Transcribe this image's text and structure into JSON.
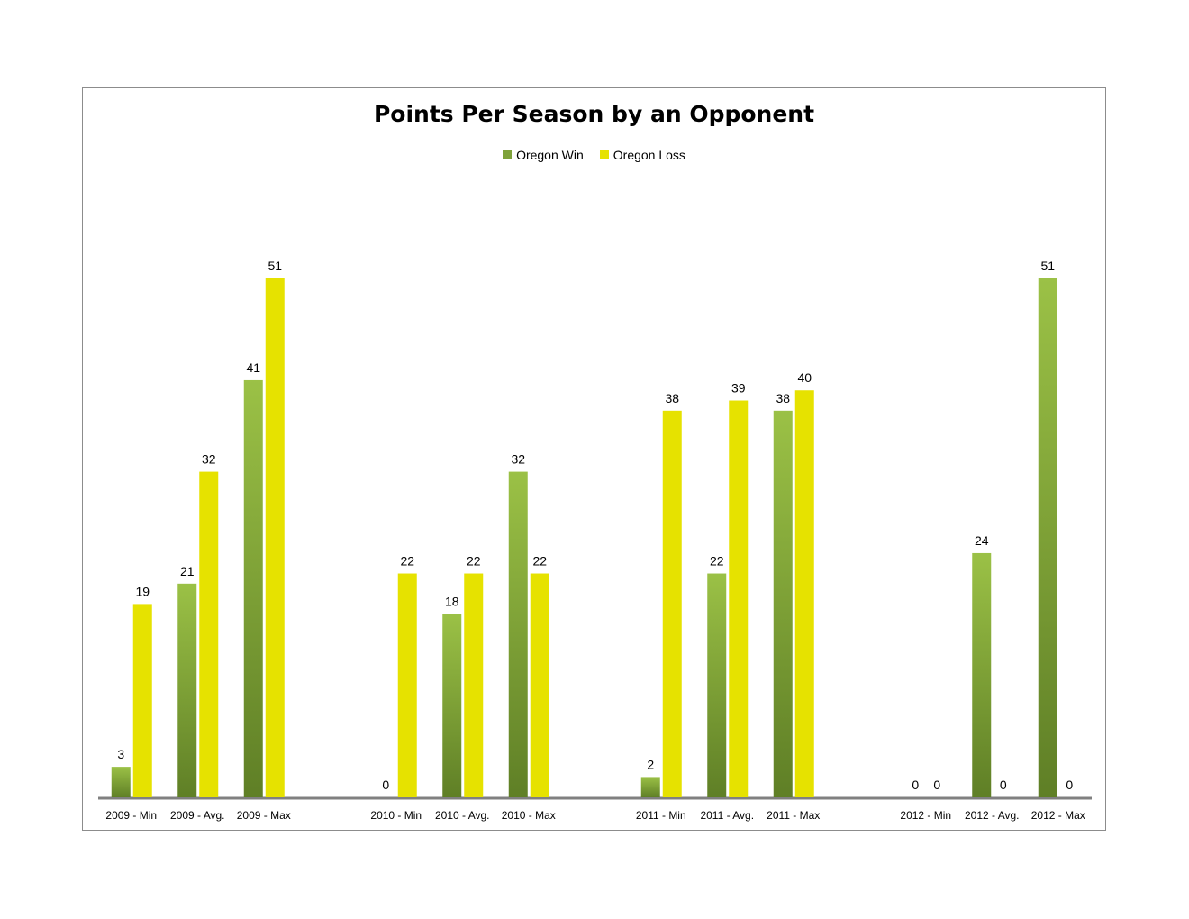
{
  "colors": {
    "win": "#7ea23a",
    "win_light": "#9bc146",
    "win_dark": "#5f7f26",
    "loss": "#e6e200",
    "axis": "#808080"
  },
  "chart_data": {
    "type": "bar",
    "title": "Points Per Season by an Opponent",
    "xlabel": "",
    "ylabel": "",
    "ylim": [
      0,
      51
    ],
    "legend_position": "top",
    "grid": false,
    "categories": [
      "2009 - Min",
      "2009 - Avg.",
      "2009 - Max",
      "2010 - Min",
      "2010 - Avg.",
      "2010 - Max",
      "2011 - Min",
      "2011 - Avg.",
      "2011 - Max",
      "2012 - Min",
      "2012 - Avg.",
      "2012 - Max"
    ],
    "series": [
      {
        "name": "Oregon Win",
        "values": [
          3,
          21,
          41,
          0,
          18,
          32,
          2,
          22,
          38,
          0,
          24,
          51
        ]
      },
      {
        "name": "Oregon Loss",
        "values": [
          19,
          32,
          51,
          22,
          22,
          22,
          38,
          39,
          40,
          0,
          0,
          0
        ]
      }
    ]
  }
}
